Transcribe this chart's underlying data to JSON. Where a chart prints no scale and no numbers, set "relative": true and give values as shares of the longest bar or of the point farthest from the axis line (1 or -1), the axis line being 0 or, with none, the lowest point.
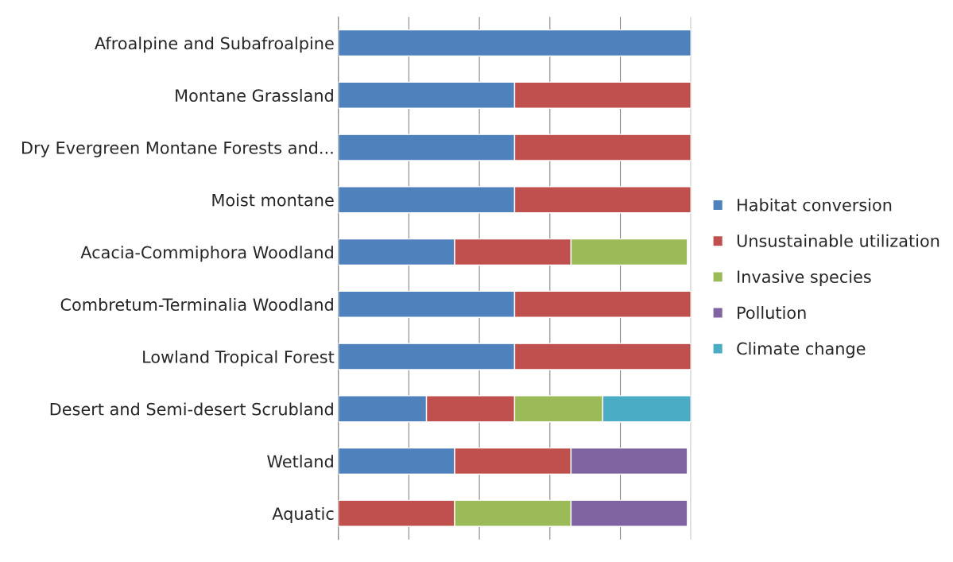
{
  "chart_data": {
    "type": "bar",
    "orientation": "horizontal",
    "stacked": true,
    "relative": true,
    "grid": "x",
    "legend": "right",
    "categories": [
      "Afroalpine and Subafroalpine",
      "Montane Grassland",
      "Dry Evergreen Montane Forests and...",
      "Moist montane",
      "Acacia-Commiphora Woodland",
      "Combretum-Terminalia Woodland",
      "Lowland Tropical Forest",
      "Desert and Semi-desert Scrubland",
      "Wetland",
      "Aquatic"
    ],
    "series": [
      {
        "name": "Habitat conversion",
        "color": "#4f81bd",
        "values": [
          1,
          0.5,
          0.5,
          0.5,
          0.33,
          0.5,
          0.5,
          0.25,
          0.33,
          null
        ]
      },
      {
        "name": "Unsustainable utilization",
        "color": "#c0504d",
        "values": [
          null,
          0.5,
          0.5,
          0.5,
          0.33,
          0.5,
          0.5,
          0.25,
          0.33,
          0.33
        ]
      },
      {
        "name": "Invasive species",
        "color": "#9bbb59",
        "values": [
          null,
          null,
          null,
          null,
          0.33,
          null,
          null,
          0.25,
          null,
          0.33
        ]
      },
      {
        "name": "Pollution",
        "color": "#8064a2",
        "values": [
          null,
          null,
          null,
          null,
          null,
          null,
          null,
          null,
          0.33,
          0.33
        ]
      },
      {
        "name": "Climate change",
        "color": "#4bacc6",
        "values": [
          null,
          null,
          null,
          null,
          null,
          null,
          null,
          0.25,
          null,
          null
        ]
      }
    ]
  }
}
